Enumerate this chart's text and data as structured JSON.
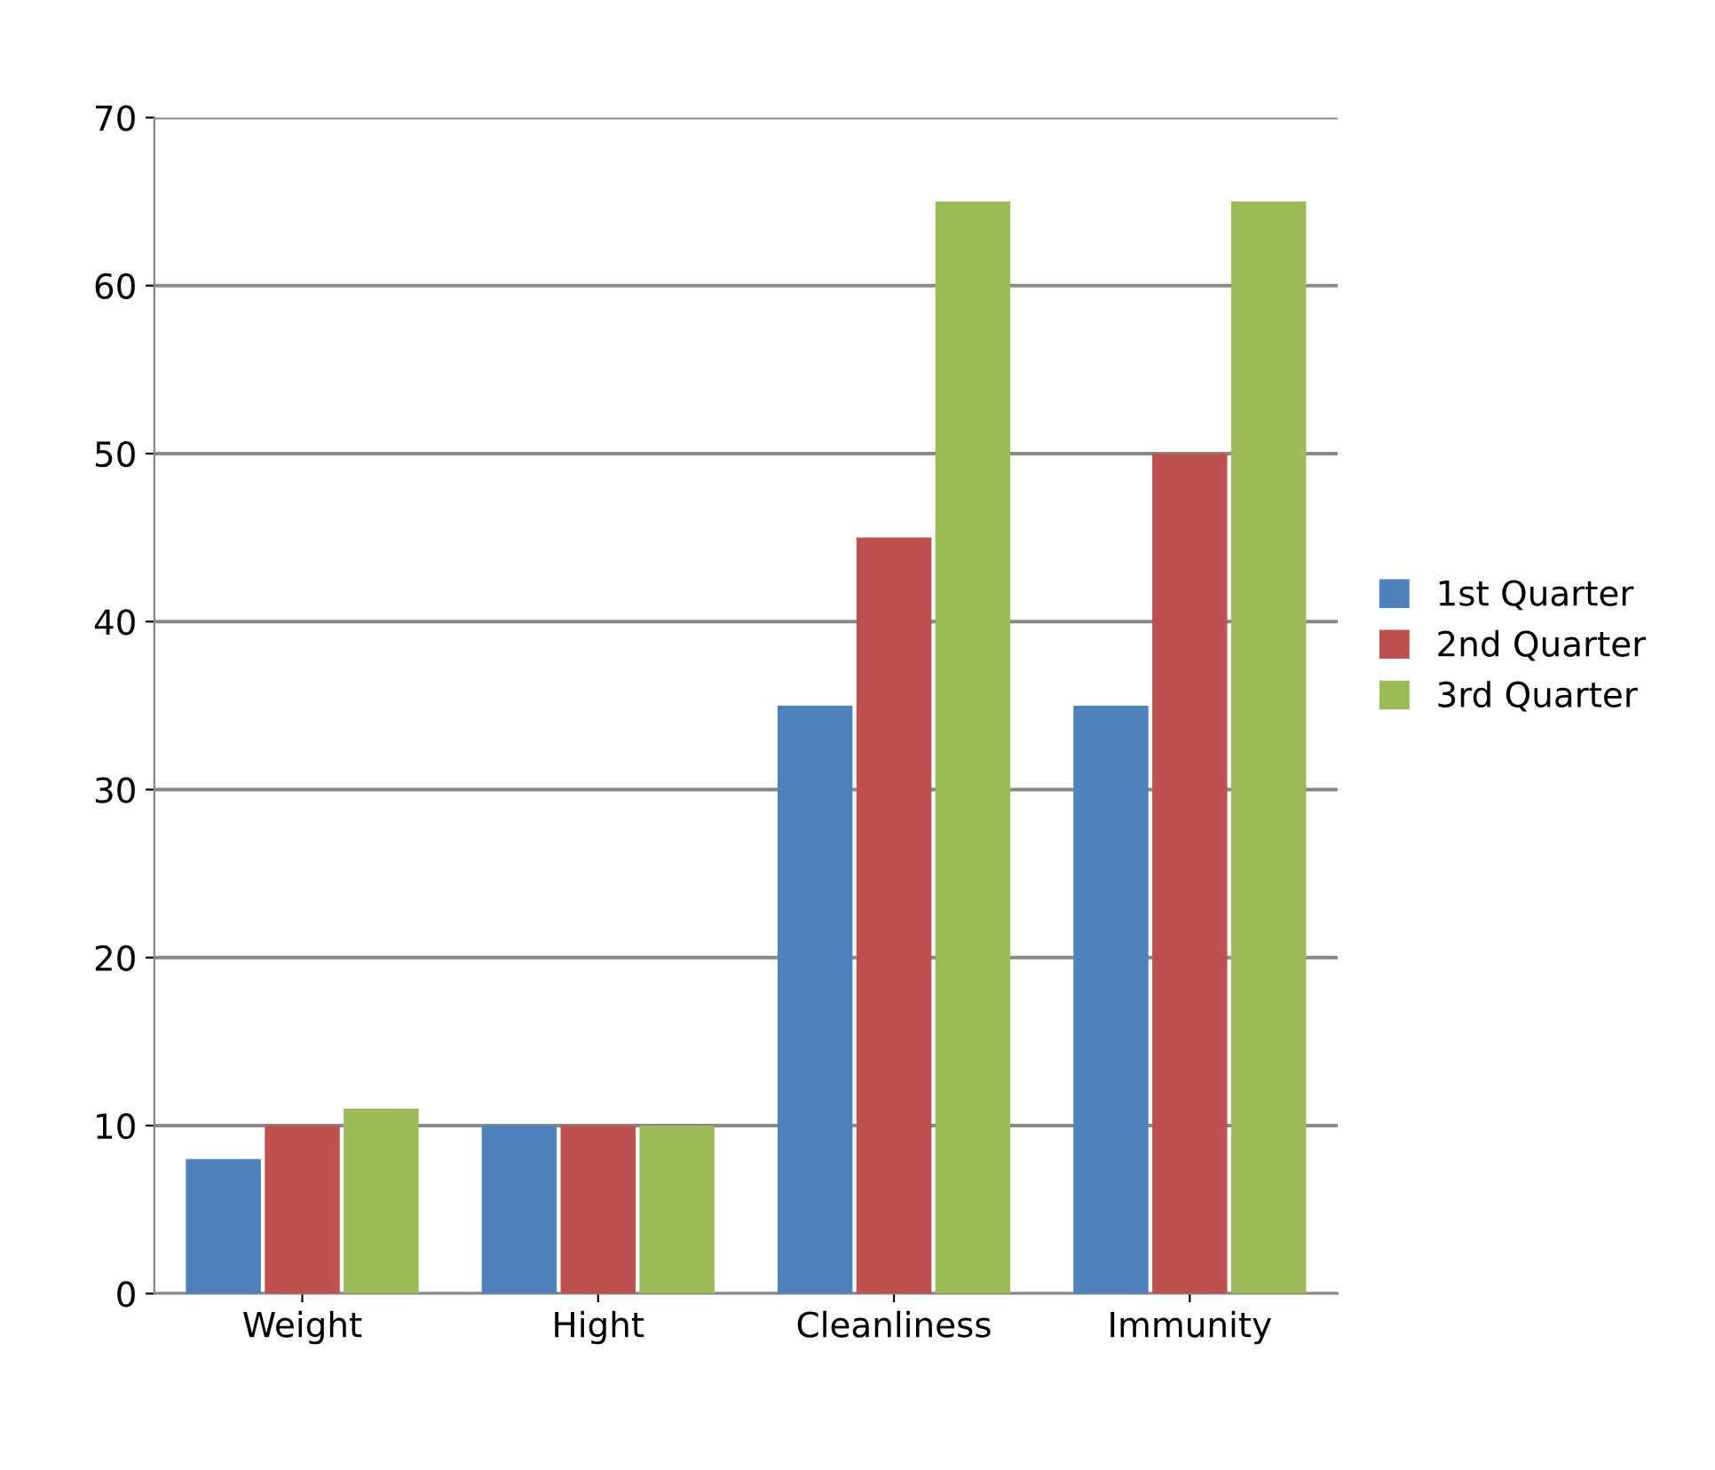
{
  "chart_data": {
    "type": "bar",
    "categories": [
      "Weight",
      "Hight",
      "Cleanliness",
      "Immunity"
    ],
    "series": [
      {
        "name": "1st Quarter",
        "color": "#4f81bd",
        "values": [
          8,
          10,
          35,
          35
        ]
      },
      {
        "name": "2nd Quarter",
        "color": "#c0504d",
        "values": [
          10,
          10,
          45,
          50
        ]
      },
      {
        "name": "3rd Quarter",
        "color": "#9bbb59",
        "values": [
          11,
          10,
          65,
          65
        ]
      }
    ],
    "ylim": [
      0,
      70
    ],
    "yticks": [
      0,
      10,
      20,
      30,
      40,
      50,
      60,
      70
    ],
    "grid": "y",
    "legend": "right"
  }
}
